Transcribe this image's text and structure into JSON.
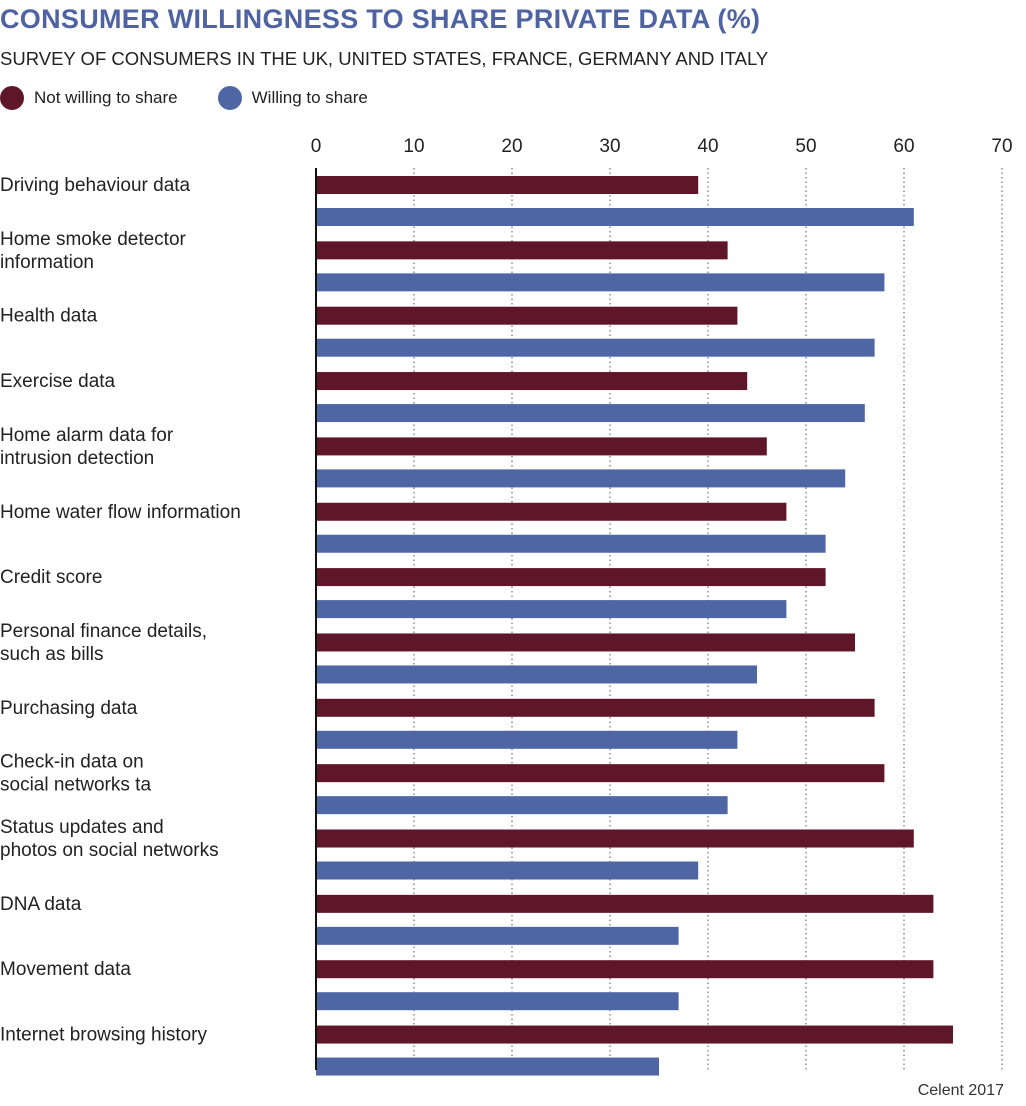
{
  "chart_data": {
    "type": "bar",
    "orientation": "horizontal",
    "title": "CONSUMER WILLINGNESS TO SHARE PRIVATE DATA (%)",
    "subtitle": "SURVEY OF CONSUMERS IN THE UK, UNITED STATES, FRANCE, GERMANY AND ITALY",
    "source": "Celent 2017",
    "xlim": [
      0,
      70
    ],
    "xticks": [
      "0",
      "10",
      "20",
      "30",
      "40",
      "50",
      "60",
      "70"
    ],
    "grid": "vertical dotted",
    "legend_position": "top-left",
    "categories": [
      [
        "Driving behaviour data"
      ],
      [
        "Home smoke detector",
        "information"
      ],
      [
        "Health data"
      ],
      [
        "Exercise data"
      ],
      [
        "Home alarm data for",
        "intrusion detection"
      ],
      [
        "Home water flow information"
      ],
      [
        "Credit score"
      ],
      [
        "Personal finance details,",
        "such as bills"
      ],
      [
        "Purchasing data"
      ],
      [
        "Check-in data on",
        "social networks ta"
      ],
      [
        "Status updates and",
        "photos on social networks"
      ],
      [
        "DNA data"
      ],
      [
        "Movement data"
      ],
      [
        "Internet browsing history"
      ]
    ],
    "series": [
      {
        "name": "Not willing to share",
        "color": "#5e1628",
        "values": [
          39,
          42,
          43,
          44,
          46,
          48,
          52,
          55,
          57,
          58,
          61,
          63,
          63,
          65
        ]
      },
      {
        "name": "Willing to share",
        "color": "#4f66a5",
        "values": [
          61,
          58,
          57,
          56,
          54,
          52,
          48,
          45,
          43,
          42,
          39,
          37,
          37,
          35
        ]
      }
    ]
  }
}
